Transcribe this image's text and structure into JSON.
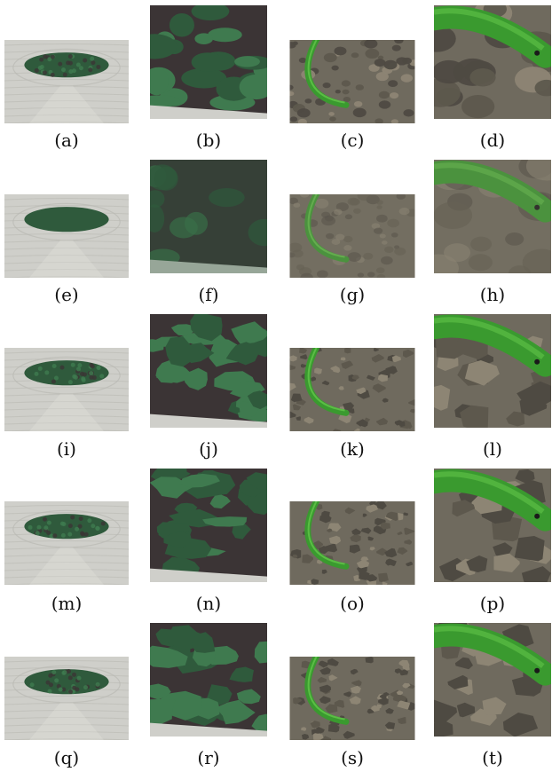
{
  "figure": {
    "panels": [
      {
        "label": "(a)",
        "scene": "garden",
        "zoom": false,
        "style": "original"
      },
      {
        "label": "(b)",
        "scene": "garden",
        "zoom": true,
        "style": "original"
      },
      {
        "label": "(c)",
        "scene": "snake",
        "zoom": false,
        "style": "original"
      },
      {
        "label": "(d)",
        "scene": "snake",
        "zoom": true,
        "style": "original"
      },
      {
        "label": "(e)",
        "scene": "garden",
        "zoom": false,
        "style": "blur"
      },
      {
        "label": "(f)",
        "scene": "garden",
        "zoom": true,
        "style": "blur"
      },
      {
        "label": "(g)",
        "scene": "snake",
        "zoom": false,
        "style": "blur"
      },
      {
        "label": "(h)",
        "scene": "snake",
        "zoom": true,
        "style": "blur"
      },
      {
        "label": "(i)",
        "scene": "garden",
        "zoom": false,
        "style": "posterized"
      },
      {
        "label": "(j)",
        "scene": "garden",
        "zoom": true,
        "style": "posterized"
      },
      {
        "label": "(k)",
        "scene": "snake",
        "zoom": false,
        "style": "posterized"
      },
      {
        "label": "(l)",
        "scene": "snake",
        "zoom": true,
        "style": "posterized"
      },
      {
        "label": "(m)",
        "scene": "garden",
        "zoom": false,
        "style": "posterized"
      },
      {
        "label": "(n)",
        "scene": "garden",
        "zoom": true,
        "style": "posterized"
      },
      {
        "label": "(o)",
        "scene": "snake",
        "zoom": false,
        "style": "posterized"
      },
      {
        "label": "(p)",
        "scene": "snake",
        "zoom": true,
        "style": "posterized"
      },
      {
        "label": "(q)",
        "scene": "garden",
        "zoom": false,
        "style": "posterized"
      },
      {
        "label": "(r)",
        "scene": "garden",
        "zoom": true,
        "style": "posterized"
      },
      {
        "label": "(s)",
        "scene": "snake",
        "zoom": false,
        "style": "posterized"
      },
      {
        "label": "(t)",
        "scene": "snake",
        "zoom": true,
        "style": "posterized"
      }
    ]
  },
  "colors": {
    "sand": "#cfcfca",
    "sand_dark": "#b9b9b3",
    "moss": "#2f5a3c",
    "moss_light": "#3f7a4f",
    "soil": "#3b3435",
    "gravel": "#6f6a5e",
    "gravel_dark": "#4e4a42",
    "snake": "#3a9a2f",
    "snake_light": "#5bbd45"
  }
}
